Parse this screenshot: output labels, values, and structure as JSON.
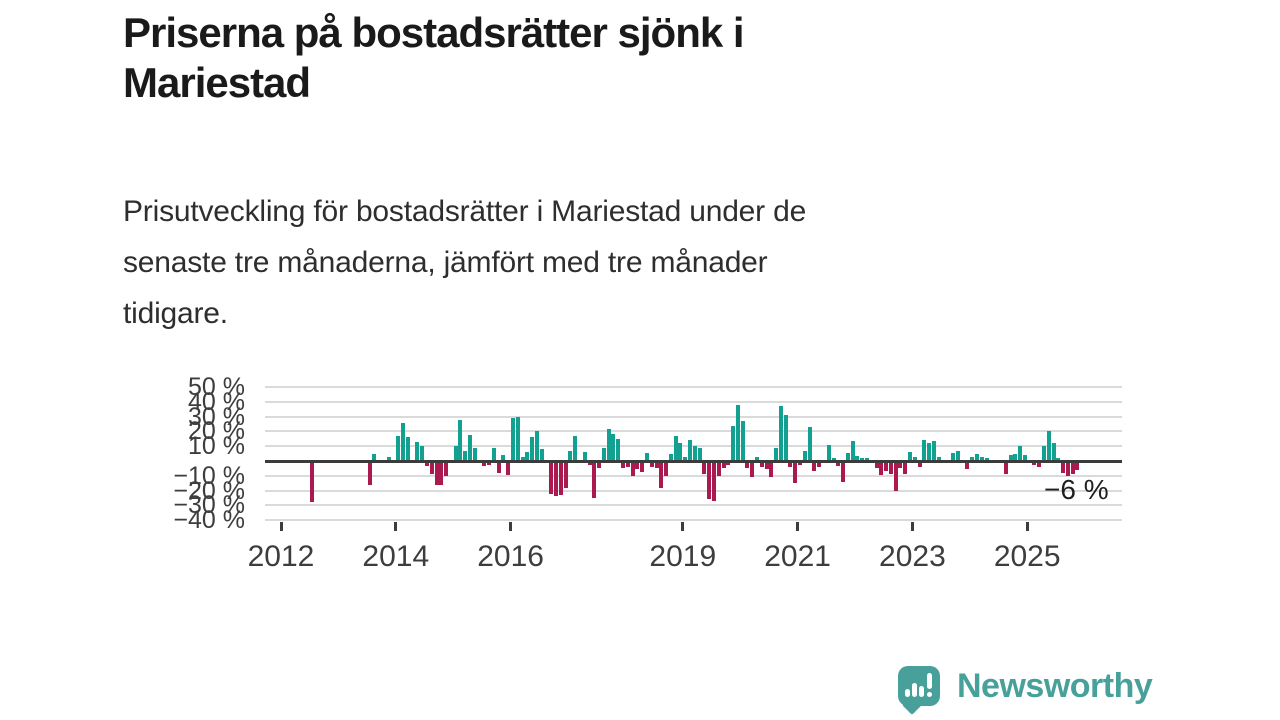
{
  "page": {
    "title_lines": [
      "Priserna på bostadsrätter sjönk i",
      "Mariestad"
    ],
    "subtitle_lines": [
      "Prisutveckling för bostadsrätter i Mariestad under de",
      "senaste tre månaderna, jämfört med tre månader",
      "tidigare."
    ]
  },
  "branding": {
    "name": "Newsworthy",
    "color": "#47a09a"
  },
  "chart_data": {
    "type": "bar",
    "title": "Priserna på bostadsrätter sjönk i Mariestad",
    "ylabel": "",
    "xlabel": "",
    "unit": "%",
    "ylim": [
      -40,
      50
    ],
    "grid": true,
    "legend_position": "none",
    "colors": {
      "positive": "#12a091",
      "negative": "#ab1a4f",
      "zero_line": "#3b3b3b",
      "gridline": "#dadada"
    },
    "y_ticks": [
      {
        "value": 50,
        "label": "50 %"
      },
      {
        "value": 40,
        "label": "40 %"
      },
      {
        "value": 30,
        "label": "30 %"
      },
      {
        "value": 20,
        "label": "20 %"
      },
      {
        "value": 10,
        "label": "10 %"
      },
      {
        "value": -10,
        "label": "−10 %"
      },
      {
        "value": -20,
        "label": "−20 %"
      },
      {
        "value": -30,
        "label": "−30 %"
      },
      {
        "value": -40,
        "label": "−40 %"
      }
    ],
    "x_ticks": [
      {
        "value": 2012,
        "label": "2012"
      },
      {
        "value": 2014,
        "label": "2014"
      },
      {
        "value": 2016,
        "label": "2016"
      },
      {
        "value": 2019,
        "label": "2019"
      },
      {
        "value": 2021,
        "label": "2021"
      },
      {
        "value": 2023,
        "label": "2023"
      },
      {
        "value": 2025,
        "label": "2025"
      }
    ],
    "annotation": {
      "text": "−6 %",
      "refers_to": "2025-11"
    },
    "points": [
      [
        "2012-07",
        -28
      ],
      [
        "2013-07",
        -16
      ],
      [
        "2013-08",
        5
      ],
      [
        "2013-11",
        3
      ],
      [
        "2014-01",
        17
      ],
      [
        "2014-02",
        26
      ],
      [
        "2014-03",
        16
      ],
      [
        "2014-05",
        13
      ],
      [
        "2014-06",
        10
      ],
      [
        "2014-07",
        -3.5
      ],
      [
        "2014-08",
        -9
      ],
      [
        "2014-09",
        -16
      ],
      [
        "2014-10",
        -16
      ],
      [
        "2014-11",
        -10
      ],
      [
        "2015-01",
        10
      ],
      [
        "2015-02",
        28
      ],
      [
        "2015-03",
        7
      ],
      [
        "2015-04",
        17.5
      ],
      [
        "2015-05",
        9
      ],
      [
        "2015-07",
        -3.5
      ],
      [
        "2015-08",
        -3
      ],
      [
        "2015-09",
        9
      ],
      [
        "2015-10",
        -8
      ],
      [
        "2015-11",
        4
      ],
      [
        "2015-12",
        -9.5
      ],
      [
        "2016-01",
        29
      ],
      [
        "2016-02",
        30
      ],
      [
        "2016-03",
        3
      ],
      [
        "2016-04",
        6
      ],
      [
        "2016-05",
        16.5
      ],
      [
        "2016-06",
        20
      ],
      [
        "2016-07",
        8
      ],
      [
        "2016-09",
        -22
      ],
      [
        "2016-10",
        -24
      ],
      [
        "2016-11",
        -23
      ],
      [
        "2016-12",
        -18
      ],
      [
        "2017-01",
        7
      ],
      [
        "2017-02",
        17
      ],
      [
        "2017-04",
        6
      ],
      [
        "2017-05",
        -3
      ],
      [
        "2017-06",
        -25
      ],
      [
        "2017-07",
        -5
      ],
      [
        "2017-08",
        9
      ],
      [
        "2017-09",
        22
      ],
      [
        "2017-10",
        18
      ],
      [
        "2017-11",
        15
      ],
      [
        "2017-12",
        -4.5
      ],
      [
        "2018-01",
        -4
      ],
      [
        "2018-02",
        -10
      ],
      [
        "2018-03",
        -5.5
      ],
      [
        "2018-04",
        -7.5
      ],
      [
        "2018-05",
        5.5
      ],
      [
        "2018-06",
        -4
      ],
      [
        "2018-07",
        -5
      ],
      [
        "2018-08",
        -18
      ],
      [
        "2018-09",
        -10
      ],
      [
        "2018-10",
        5
      ],
      [
        "2018-11",
        17
      ],
      [
        "2018-12",
        12
      ],
      [
        "2019-01",
        3
      ],
      [
        "2019-02",
        14
      ],
      [
        "2019-03",
        10
      ],
      [
        "2019-04",
        9
      ],
      [
        "2019-05",
        -9
      ],
      [
        "2019-06",
        -26
      ],
      [
        "2019-07",
        -27
      ],
      [
        "2019-08",
        -10
      ],
      [
        "2019-09",
        -5
      ],
      [
        "2019-10",
        -3
      ],
      [
        "2019-11",
        24
      ],
      [
        "2019-12",
        38
      ],
      [
        "2020-01",
        27
      ],
      [
        "2020-02",
        -5
      ],
      [
        "2020-03",
        -11
      ],
      [
        "2020-04",
        3
      ],
      [
        "2020-05",
        -4
      ],
      [
        "2020-06",
        -5.5
      ],
      [
        "2020-07",
        -11
      ],
      [
        "2020-08",
        9
      ],
      [
        "2020-09",
        37
      ],
      [
        "2020-10",
        31
      ],
      [
        "2020-11",
        -4
      ],
      [
        "2020-12",
        -15
      ],
      [
        "2021-01",
        -3
      ],
      [
        "2021-02",
        7
      ],
      [
        "2021-03",
        23
      ],
      [
        "2021-04",
        -7
      ],
      [
        "2021-05",
        -4
      ],
      [
        "2021-07",
        11
      ],
      [
        "2021-08",
        2
      ],
      [
        "2021-09",
        -3.5
      ],
      [
        "2021-10",
        -14
      ],
      [
        "2021-11",
        5.5
      ],
      [
        "2021-12",
        13.5
      ],
      [
        "2022-01",
        3.5
      ],
      [
        "2022-02",
        2
      ],
      [
        "2022-03",
        2
      ],
      [
        "2022-04",
        -1.5
      ],
      [
        "2022-05",
        -5
      ],
      [
        "2022-06",
        -9.5
      ],
      [
        "2022-07",
        -7
      ],
      [
        "2022-08",
        -9
      ],
      [
        "2022-09",
        -20
      ],
      [
        "2022-10",
        -5
      ],
      [
        "2022-11",
        -9
      ],
      [
        "2022-12",
        6
      ],
      [
        "2023-01",
        3
      ],
      [
        "2023-02",
        -4
      ],
      [
        "2023-03",
        14.5
      ],
      [
        "2023-04",
        12
      ],
      [
        "2023-05",
        13.5
      ],
      [
        "2023-06",
        3
      ],
      [
        "2023-09",
        5.5
      ],
      [
        "2023-10",
        6.5
      ],
      [
        "2023-12",
        -5.5
      ],
      [
        "2024-01",
        2.5
      ],
      [
        "2024-02",
        5
      ],
      [
        "2024-03",
        3
      ],
      [
        "2024-04",
        2
      ],
      [
        "2024-08",
        -9
      ],
      [
        "2024-09",
        4
      ],
      [
        "2024-10",
        5
      ],
      [
        "2024-11",
        10
      ],
      [
        "2024-12",
        4
      ],
      [
        "2025-02",
        -3
      ],
      [
        "2025-03",
        -4
      ],
      [
        "2025-04",
        10
      ],
      [
        "2025-05",
        20
      ],
      [
        "2025-06",
        12
      ],
      [
        "2025-07",
        2
      ],
      [
        "2025-08",
        -8
      ],
      [
        "2025-09",
        -10
      ],
      [
        "2025-10",
        -9
      ],
      [
        "2025-11",
        -6
      ]
    ]
  }
}
